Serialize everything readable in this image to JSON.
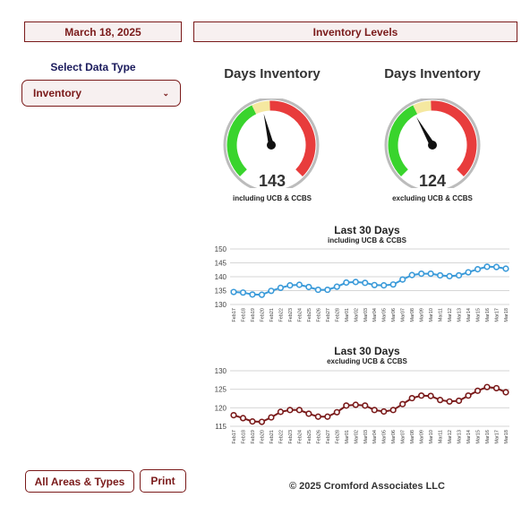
{
  "header": {
    "date": "March 18, 2025",
    "title": "Inventory Levels"
  },
  "data_type": {
    "label": "Select Data Type",
    "selected": "Inventory"
  },
  "gauges": [
    {
      "title": "Days Inventory",
      "value": "143",
      "subtitle": "including UCB & CCBS",
      "needle_fraction": 0.45
    },
    {
      "title": "Days Inventory",
      "value": "124",
      "subtitle": "excluding UCB & CCBS",
      "needle_fraction": 0.39
    }
  ],
  "footer": {
    "all_button": "All Areas & Types",
    "print_button": "Print",
    "copyright": "© 2025 Cromford Associates LLC"
  },
  "colors": {
    "accent": "#7a1a1a",
    "series1": "#3a9ad9",
    "series2": "#7a1a1a",
    "gauge_green": "#39d42d",
    "gauge_yellow": "#f5e8a0",
    "gauge_red": "#e83c3c"
  },
  "chart_data": [
    {
      "type": "line",
      "title": "Last 30 Days",
      "subtitle": "including UCB & CCBS",
      "ylim": [
        130,
        150
      ],
      "yticks": [
        130,
        135,
        140,
        145,
        150
      ],
      "categories": [
        "Feb17",
        "Feb18",
        "Feb19",
        "Feb20",
        "Feb21",
        "Feb22",
        "Feb23",
        "Feb24",
        "Feb25",
        "Feb26",
        "Feb27",
        "Feb28",
        "Mar01",
        "Mar02",
        "Mar03",
        "Mar04",
        "Mar05",
        "Mar06",
        "Mar07",
        "Mar08",
        "Mar09",
        "Mar10",
        "Mar11",
        "Mar12",
        "Mar13",
        "Mar14",
        "Mar15",
        "Mar16",
        "Mar17",
        "Mar18"
      ],
      "values": [
        134.5,
        134.3,
        133.6,
        133.5,
        134.9,
        136.0,
        136.9,
        137.1,
        136.3,
        135.3,
        135.3,
        136.4,
        137.9,
        138.1,
        137.8,
        137.0,
        136.9,
        137.2,
        139.0,
        140.6,
        141.1,
        141.1,
        140.5,
        140.2,
        140.5,
        141.6,
        142.7,
        143.6,
        143.5,
        142.9
      ]
    },
    {
      "type": "line",
      "title": "Last 30 Days",
      "subtitle": "excluding UCB & CCBS",
      "ylim": [
        115,
        130
      ],
      "yticks": [
        115,
        120,
        125,
        130
      ],
      "categories": [
        "Feb17",
        "Feb18",
        "Feb19",
        "Feb20",
        "Feb21",
        "Feb22",
        "Feb23",
        "Feb24",
        "Feb25",
        "Feb26",
        "Feb27",
        "Feb28",
        "Mar01",
        "Mar02",
        "Mar03",
        "Mar04",
        "Mar05",
        "Mar06",
        "Mar07",
        "Mar08",
        "Mar09",
        "Mar10",
        "Mar11",
        "Mar12",
        "Mar13",
        "Mar14",
        "Mar15",
        "Mar16",
        "Mar17",
        "Mar18"
      ],
      "values": [
        118.0,
        117.2,
        116.3,
        116.2,
        117.4,
        118.9,
        119.4,
        119.4,
        118.4,
        117.6,
        117.6,
        118.8,
        120.6,
        120.8,
        120.6,
        119.4,
        119.0,
        119.4,
        121.0,
        122.6,
        123.3,
        123.2,
        122.1,
        121.7,
        121.9,
        123.3,
        124.6,
        125.6,
        125.3,
        124.2
      ]
    }
  ]
}
